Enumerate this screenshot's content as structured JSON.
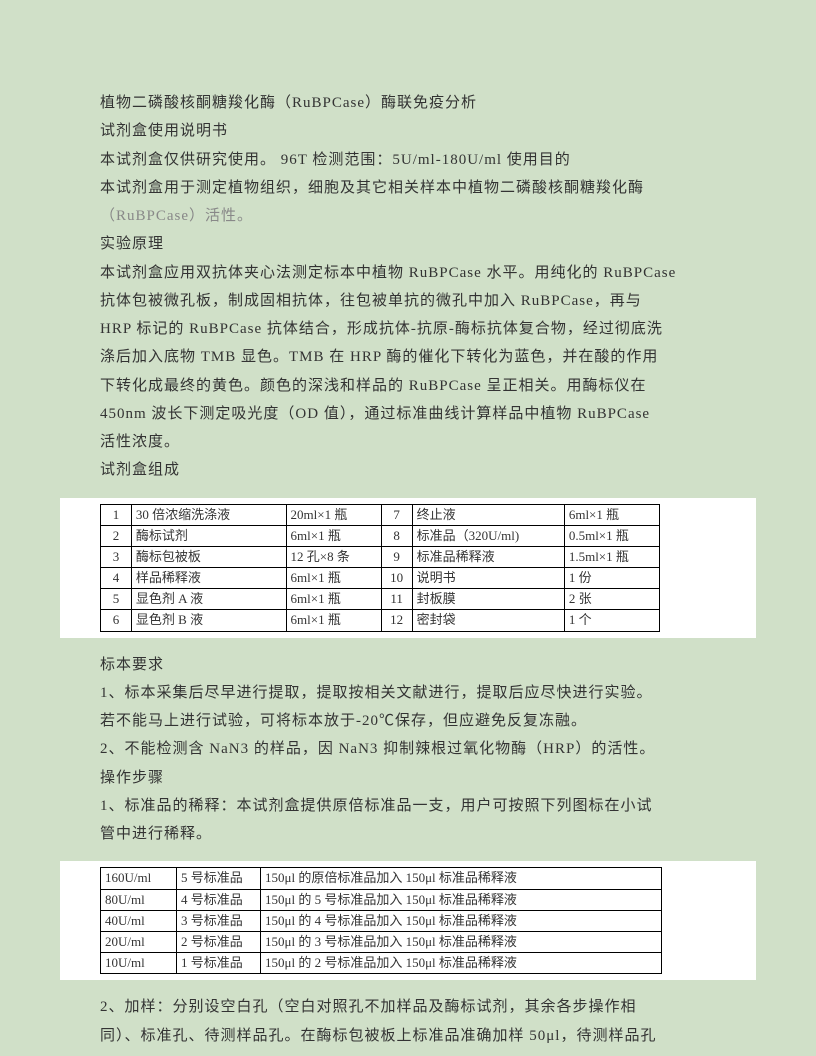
{
  "intro": {
    "line1": "植物二磷酸核酮糖羧化酶（RuBPCase）酶联免疫分析",
    "line2": "试剂盒使用说明书",
    "line3": "本试剂盒仅供研究使用。 96T 检测范围：5U/ml-180U/ml 使用目的",
    "line4": "本试剂盒用于测定植物组织，细胞及其它相关样本中植物二磷酸核酮糖羧化酶",
    "line5": "（RuBPCase）活性。",
    "h2": "实验原理",
    "p1": "本试剂盒应用双抗体夹心法测定标本中植物 RuBPCase 水平。用纯化的 RuBPCase",
    "p2": "抗体包被微孔板，制成固相抗体，往包被单抗的微孔中加入 RuBPCase，再与",
    "p3": "HRP 标记的 RuBPCase 抗体结合，形成抗体-抗原-酶标抗体复合物，经过彻底洗",
    "p4": "涤后加入底物 TMB 显色。TMB 在 HRP 酶的催化下转化为蓝色，并在酸的作用",
    "p5": "下转化成最终的黄色。颜色的深浅和样品的 RuBPCase 呈正相关。用酶标仪在",
    "p6": "450nm 波长下测定吸光度（OD 值），通过标准曲线计算样品中植物 RuBPCase",
    "p7": "活性浓度。",
    "h3": "试剂盒组成"
  },
  "components": {
    "rows": [
      {
        "i1": "1",
        "n1": "30 倍浓缩洗涤液",
        "s1": "20ml×1 瓶",
        "i2": "7",
        "n2": "终止液",
        "s2": "6ml×1 瓶"
      },
      {
        "i1": "2",
        "n1": "酶标试剂",
        "s1": "6ml×1 瓶",
        "i2": "8",
        "n2": "标准品（320U/ml)",
        "s2": "0.5ml×1 瓶"
      },
      {
        "i1": "3",
        "n1": "酶标包被板",
        "s1": "12 孔×8 条",
        "i2": "9",
        "n2": "标准品稀释液",
        "s2": "1.5ml×1 瓶"
      },
      {
        "i1": "4",
        "n1": "样品稀释液",
        "s1": "6ml×1 瓶",
        "i2": "10",
        "n2": "说明书",
        "s2": "1 份"
      },
      {
        "i1": "5",
        "n1": "显色剂 A 液",
        "s1": "6ml×1 瓶",
        "i2": "11",
        "n2": "封板膜",
        "s2": "2 张"
      },
      {
        "i1": "6",
        "n1": "显色剂 B 液",
        "s1": "6ml×1 瓶",
        "i2": "12",
        "n2": "密封袋",
        "s2": "1 个"
      }
    ]
  },
  "sample": {
    "h": "标本要求",
    "l1": "1、标本采集后尽早进行提取，提取按相关文献进行，提取后应尽快进行实验。",
    "l2": "若不能马上进行试验，可将标本放于-20℃保存，但应避免反复冻融。",
    "l3": "2、不能检测含 NaN3 的样品，因 NaN3 抑制辣根过氧化物酶（HRP）的活性。",
    "h2": "操作步骤",
    "l4": "1、标准品的稀释：本试剂盒提供原倍标准品一支，用户可按照下列图标在小试",
    "l5": "管中进行稀释。"
  },
  "dilution": {
    "rows": [
      {
        "c": "160U/ml",
        "s": "5 号标准品",
        "i": "150μl 的原倍标准品加入 150μl 标准品稀释液"
      },
      {
        "c": "80U/ml",
        "s": "4 号标准品",
        "i": "150μl 的 5 号标准品加入 150μl 标准品稀释液"
      },
      {
        "c": "40U/ml",
        "s": "3 号标准品",
        "i": "150μl 的 4 号标准品加入 150μl 标准品稀释液"
      },
      {
        "c": "20U/ml",
        "s": "2 号标准品",
        "i": "150μl 的 3 号标准品加入 150μl 标准品稀释液"
      },
      {
        "c": "10U/ml",
        "s": "1 号标准品",
        "i": "150μl 的 2 号标准品加入 150μl 标准品稀释液"
      }
    ]
  },
  "tail": {
    "l1": "2、加样：分别设空白孔（空白对照孔不加样品及酶标试剂，其余各步操作相",
    "l2": "同）、标准孔、待测样品孔。在酶标包被板上标准品准确加样 50μl，待测样品孔"
  }
}
